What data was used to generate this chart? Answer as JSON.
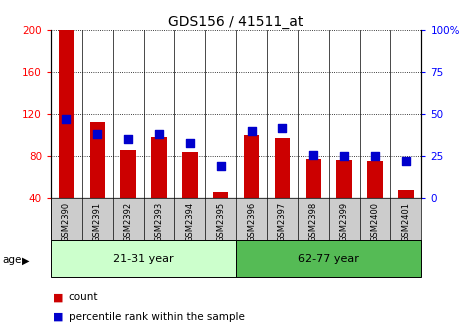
{
  "title": "GDS156 / 41511_at",
  "samples": [
    "GSM2390",
    "GSM2391",
    "GSM2392",
    "GSM2393",
    "GSM2394",
    "GSM2395",
    "GSM2396",
    "GSM2397",
    "GSM2398",
    "GSM2399",
    "GSM2400",
    "GSM2401"
  ],
  "counts": [
    200,
    113,
    86,
    98,
    84,
    46,
    100,
    97,
    77,
    76,
    75,
    48
  ],
  "percentiles": [
    47,
    38,
    35,
    38,
    33,
    19,
    40,
    42,
    26,
    25,
    25,
    22
  ],
  "group1_label": "21-31 year",
  "group2_label": "62-77 year",
  "group1_count": 6,
  "group2_count": 6,
  "ylim_left": [
    40,
    200
  ],
  "ylim_right": [
    0,
    100
  ],
  "yticks_left": [
    40,
    80,
    120,
    160,
    200
  ],
  "yticks_right": [
    0,
    25,
    50,
    75,
    100
  ],
  "ytick_right_labels": [
    "0",
    "25",
    "50",
    "75",
    "100%"
  ],
  "bar_color": "#cc0000",
  "dot_color": "#0000cc",
  "group_bg_color1": "#ccffcc",
  "group_bg_color2": "#55bb55",
  "label_area_color": "#cccccc",
  "legend_count_label": "count",
  "legend_pct_label": "percentile rank within the sample",
  "bar_width": 0.5,
  "dot_size": 28
}
